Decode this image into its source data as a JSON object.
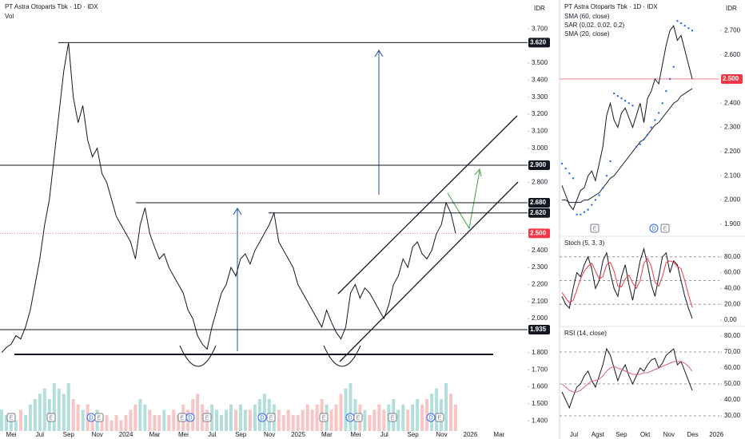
{
  "chart_data": [
    {
      "type": "line",
      "title": "PT Astra Otoparts Tbk · 1D · IDX",
      "subtitle": "Vol",
      "axis_unit": "IDR",
      "color": "#131722",
      "values": [
        1.8,
        1.83,
        1.85,
        1.9,
        1.88,
        1.95,
        2.05,
        2.2,
        2.35,
        2.55,
        2.7,
        2.95,
        3.2,
        3.45,
        3.62,
        3.3,
        3.15,
        3.25,
        3.05,
        2.95,
        3.0,
        2.85,
        2.8,
        2.7,
        2.6,
        2.55,
        2.5,
        2.45,
        2.35,
        2.55,
        2.65,
        2.5,
        2.42,
        2.35,
        2.38,
        2.3,
        2.25,
        2.2,
        2.15,
        2.05,
        2.0,
        1.9,
        1.85,
        1.82,
        1.95,
        2.05,
        2.15,
        2.2,
        2.3,
        2.25,
        2.35,
        2.38,
        2.32,
        2.4,
        2.45,
        2.5,
        2.55,
        2.62,
        2.45,
        2.4,
        2.35,
        2.3,
        2.2,
        2.15,
        2.1,
        2.05,
        2.0,
        1.95,
        2.05,
        1.98,
        1.92,
        1.88,
        1.95,
        2.15,
        2.2,
        2.12,
        2.18,
        2.15,
        2.1,
        2.05,
        2.0,
        2.08,
        2.2,
        2.25,
        2.35,
        2.3,
        2.42,
        2.45,
        2.38,
        2.35,
        2.4,
        2.5,
        2.55,
        2.68,
        2.62,
        2.5
      ],
      "volume": [
        4,
        3,
        3,
        2,
        4,
        3,
        5,
        6,
        7,
        8,
        6,
        9,
        8,
        7,
        9,
        6,
        5,
        4,
        5,
        3,
        4,
        3,
        3,
        2,
        3,
        2,
        3,
        4,
        5,
        6,
        5,
        4,
        3,
        3,
        4,
        3,
        4,
        3,
        5,
        4,
        6,
        7,
        5,
        4,
        5,
        4,
        3,
        4,
        5,
        4,
        5,
        4,
        4,
        5,
        6,
        7,
        6,
        5,
        4,
        3,
        4,
        3,
        3,
        4,
        5,
        4,
        5,
        6,
        5,
        4,
        5,
        7,
        8,
        9,
        6,
        5,
        4,
        3,
        4,
        5,
        4,
        5,
        6,
        4,
        5,
        4,
        5,
        6,
        5,
        6,
        7,
        8,
        6,
        9,
        7,
        5
      ],
      "volume_colors": [
        "#b2dfdb",
        "#f8c4c4"
      ],
      "ylim": [
        1.34,
        3.87
      ],
      "yticks": [
        {
          "value": 3.7,
          "label": "3.700"
        },
        {
          "value": 3.5,
          "label": "3.500"
        },
        {
          "value": 3.4,
          "label": "3.400"
        },
        {
          "value": 3.3,
          "label": "3.300"
        },
        {
          "value": 3.2,
          "label": "3.200"
        },
        {
          "value": 3.1,
          "label": "3.100"
        },
        {
          "value": 3.0,
          "label": "3.000"
        },
        {
          "value": 2.8,
          "label": "2.800"
        },
        {
          "value": 2.4,
          "label": "2.400"
        },
        {
          "value": 2.3,
          "label": "2.300"
        },
        {
          "value": 2.2,
          "label": "2.200"
        },
        {
          "value": 2.1,
          "label": "2.100"
        },
        {
          "value": 2.0,
          "label": "2.000"
        },
        {
          "value": 1.8,
          "label": "1.800"
        },
        {
          "value": 1.7,
          "label": "1.700"
        },
        {
          "value": 1.6,
          "label": "1.600"
        },
        {
          "value": 1.5,
          "label": "1.500"
        },
        {
          "value": 1.4,
          "label": "1.400"
        }
      ],
      "levels": [
        {
          "value": 3.62,
          "label": "3.620"
        },
        {
          "value": 2.9,
          "label": "2.900"
        },
        {
          "value": 2.68,
          "label": "2.680"
        },
        {
          "value": 2.62,
          "label": "2.620"
        },
        {
          "value": 1.935,
          "label": "1.935"
        }
      ],
      "last": {
        "value": 2.5,
        "label": "2.500"
      },
      "last_color": "#f23645",
      "x_labels": [
        "Mei",
        "Jul",
        "Sep",
        "Nov",
        "2024",
        "Mar",
        "Mei",
        "Jul",
        "Sep",
        "Nov",
        "2025",
        "Mar",
        "Mei",
        "Jul",
        "Sep",
        "Nov",
        "2026",
        "Mar"
      ],
      "events": [
        "E",
        "E",
        "D",
        "E",
        "E",
        "D",
        "E",
        "D",
        "E",
        "E",
        "D",
        "E",
        "E",
        "D",
        "E"
      ]
    },
    {
      "type": "line",
      "title": "PT Astra Otoparts Tbk · 1D · IDX",
      "legend": [
        "SMA (60, close)",
        "SAR (0,02, 0,02, 0,2)",
        "SMA (20, close)"
      ],
      "axis_unit": "IDR",
      "color": "#131722",
      "values": [
        2.06,
        2.02,
        1.98,
        1.96,
        2.0,
        2.04,
        2.05,
        2.1,
        2.12,
        2.08,
        2.15,
        2.22,
        2.35,
        2.4,
        2.33,
        2.3,
        2.36,
        2.38,
        2.34,
        2.3,
        2.35,
        2.4,
        2.32,
        2.42,
        2.45,
        2.5,
        2.48,
        2.56,
        2.64,
        2.7,
        2.72,
        2.66,
        2.68,
        2.62,
        2.56,
        2.5
      ],
      "sma": [
        2.0,
        2.0,
        1.99,
        1.99,
        1.99,
        1.99,
        2.0,
        2.0,
        2.01,
        2.02,
        2.03,
        2.05,
        2.07,
        2.09,
        2.1,
        2.12,
        2.14,
        2.16,
        2.18,
        2.2,
        2.22,
        2.24,
        2.25,
        2.27,
        2.29,
        2.31,
        2.32,
        2.34,
        2.36,
        2.38,
        2.4,
        2.41,
        2.43,
        2.44,
        2.45,
        2.46
      ],
      "sma_color": "#1c2030",
      "sar": [
        2.15,
        2.13,
        2.11,
        2.09,
        1.94,
        1.94,
        1.95,
        1.96,
        1.98,
        2.0,
        2.02,
        2.05,
        2.1,
        2.16,
        2.44,
        2.43,
        2.42,
        2.41,
        2.4,
        2.39,
        2.22,
        2.23,
        2.25,
        2.27,
        2.3,
        2.33,
        2.36,
        2.4,
        2.45,
        2.5,
        2.55,
        2.74,
        2.73,
        2.72,
        2.71,
        2.7
      ],
      "sar_color": "#2962ff",
      "ylim": [
        1.87,
        2.8
      ],
      "yticks": [
        {
          "value": 2.7,
          "label": "2.700"
        },
        {
          "value": 2.6,
          "label": "2.600"
        },
        {
          "value": 2.4,
          "label": "2.400"
        },
        {
          "value": 2.3,
          "label": "2.300"
        },
        {
          "value": 2.2,
          "label": "2.200"
        },
        {
          "value": 2.1,
          "label": "2.100"
        },
        {
          "value": 2.0,
          "label": "2.000"
        },
        {
          "value": 1.9,
          "label": "1.900"
        }
      ],
      "last": {
        "value": 2.5,
        "label": "2.500"
      },
      "last_color": "#f23645",
      "x_labels": [
        "Jul",
        "Agst",
        "Sep",
        "Okt",
        "Nov",
        "Des",
        "2026"
      ],
      "events": [
        "E",
        "D",
        "E"
      ]
    },
    {
      "type": "line",
      "title": "Stoch (5, 3, 3)",
      "series": [
        {
          "color": "#131722",
          "values": [
            30,
            20,
            15,
            40,
            60,
            55,
            70,
            80,
            65,
            40,
            50,
            75,
            85,
            60,
            40,
            30,
            55,
            70,
            45,
            25,
            50,
            75,
            90,
            70,
            45,
            30,
            55,
            80,
            85,
            60,
            75,
            70,
            50,
            30,
            15,
            2
          ]
        },
        {
          "color": "#f23645",
          "values": [
            35,
            28,
            22,
            25,
            38,
            52,
            62,
            68,
            72,
            62,
            52,
            55,
            70,
            73,
            62,
            43,
            42,
            52,
            57,
            47,
            40,
            50,
            72,
            78,
            68,
            48,
            43,
            55,
            73,
            75,
            73,
            68,
            65,
            50,
            32,
            16
          ]
        }
      ],
      "ylim": [
        -7,
        102
      ],
      "yticks": [
        {
          "value": 80,
          "label": "80,00"
        },
        {
          "value": 60,
          "label": "60,00"
        },
        {
          "value": 40,
          "label": "40,00"
        },
        {
          "value": 20,
          "label": "20,00"
        },
        {
          "value": 0,
          "label": "0,00"
        }
      ],
      "bands": [
        80,
        50,
        20
      ]
    },
    {
      "type": "line",
      "title": "RSI (14, close)",
      "series": [
        {
          "color": "#131722",
          "values": [
            45,
            40,
            35,
            42,
            48,
            50,
            55,
            58,
            52,
            48,
            55,
            62,
            72,
            68,
            60,
            52,
            58,
            62,
            55,
            50,
            55,
            60,
            58,
            62,
            65,
            66,
            60,
            63,
            68,
            70,
            72,
            62,
            64,
            58,
            52,
            46
          ]
        },
        {
          "color": "#e0607e",
          "values": [
            50,
            48,
            46,
            45,
            45,
            46,
            48,
            50,
            52,
            52,
            53,
            55,
            58,
            60,
            61,
            60,
            59,
            58,
            57,
            56,
            56,
            56,
            57,
            57,
            58,
            59,
            60,
            61,
            62,
            63,
            64,
            64,
            64,
            63,
            61,
            58
          ]
        }
      ],
      "ylim": [
        20.5,
        85.5
      ],
      "yticks": [
        {
          "value": 80,
          "label": "80,00"
        },
        {
          "value": 70,
          "label": "70,00"
        },
        {
          "value": 60,
          "label": "60,00"
        },
        {
          "value": 50,
          "label": "50,00"
        },
        {
          "value": 40,
          "label": "40,00"
        },
        {
          "value": 30,
          "label": "30,00"
        }
      ],
      "bands": [
        70,
        50,
        30
      ]
    }
  ]
}
